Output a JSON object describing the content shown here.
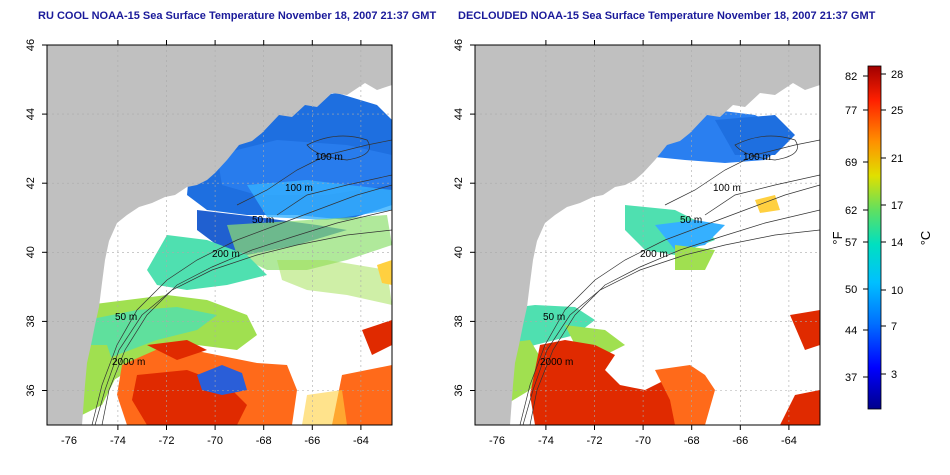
{
  "panels": [
    {
      "title": "RU COOL NOAA-15 Sea Surface Temperature November 18, 2007 21:37 GMT",
      "contour_labels": [
        "100 m",
        "100 m",
        "50 m",
        "200 m",
        "50 m",
        "2000 m"
      ]
    },
    {
      "title": "DECLOUDED NOAA-15 Sea Surface Temperature November 18, 2007 21:37 GMT",
      "contour_labels": [
        "100 m",
        "100 m",
        "50 m",
        "200 m",
        "50 m",
        "2000 m"
      ]
    }
  ],
  "axes": {
    "lon_ticks": [
      "-76",
      "-74",
      "-72",
      "-70",
      "-68",
      "-66",
      "-64"
    ],
    "lat_ticks": [
      "46",
      "44",
      "42",
      "40",
      "38",
      "36"
    ],
    "lon_range": [
      -77.2,
      -63.0
    ],
    "lat_range": [
      35.0,
      46.0
    ]
  },
  "colorbar": {
    "fahrenheit_ticks": [
      "82",
      "77",
      "69",
      "62",
      "57",
      "50",
      "44",
      "37"
    ],
    "celsius_ticks": [
      "28",
      "25",
      "21",
      "17",
      "14",
      "10",
      "7",
      "3"
    ],
    "fahrenheit_unit": "°F",
    "celsius_unit": "°C",
    "colors": [
      "#00008b",
      "#0000ff",
      "#0070ff",
      "#00c0ff",
      "#00e0c0",
      "#60e060",
      "#e0e000",
      "#ff9000",
      "#ff2000",
      "#a00000"
    ]
  },
  "colors": {
    "land": "#c0c0c0",
    "ocean_missing": "#ffffff",
    "cold": "#1e6fe0",
    "cool": "#35b0ff",
    "mild": "#4fe0b0",
    "warm": "#a0e050",
    "hot": "#ff6a1a",
    "hottest": "#e02a00",
    "title": "#1a1a9a"
  }
}
